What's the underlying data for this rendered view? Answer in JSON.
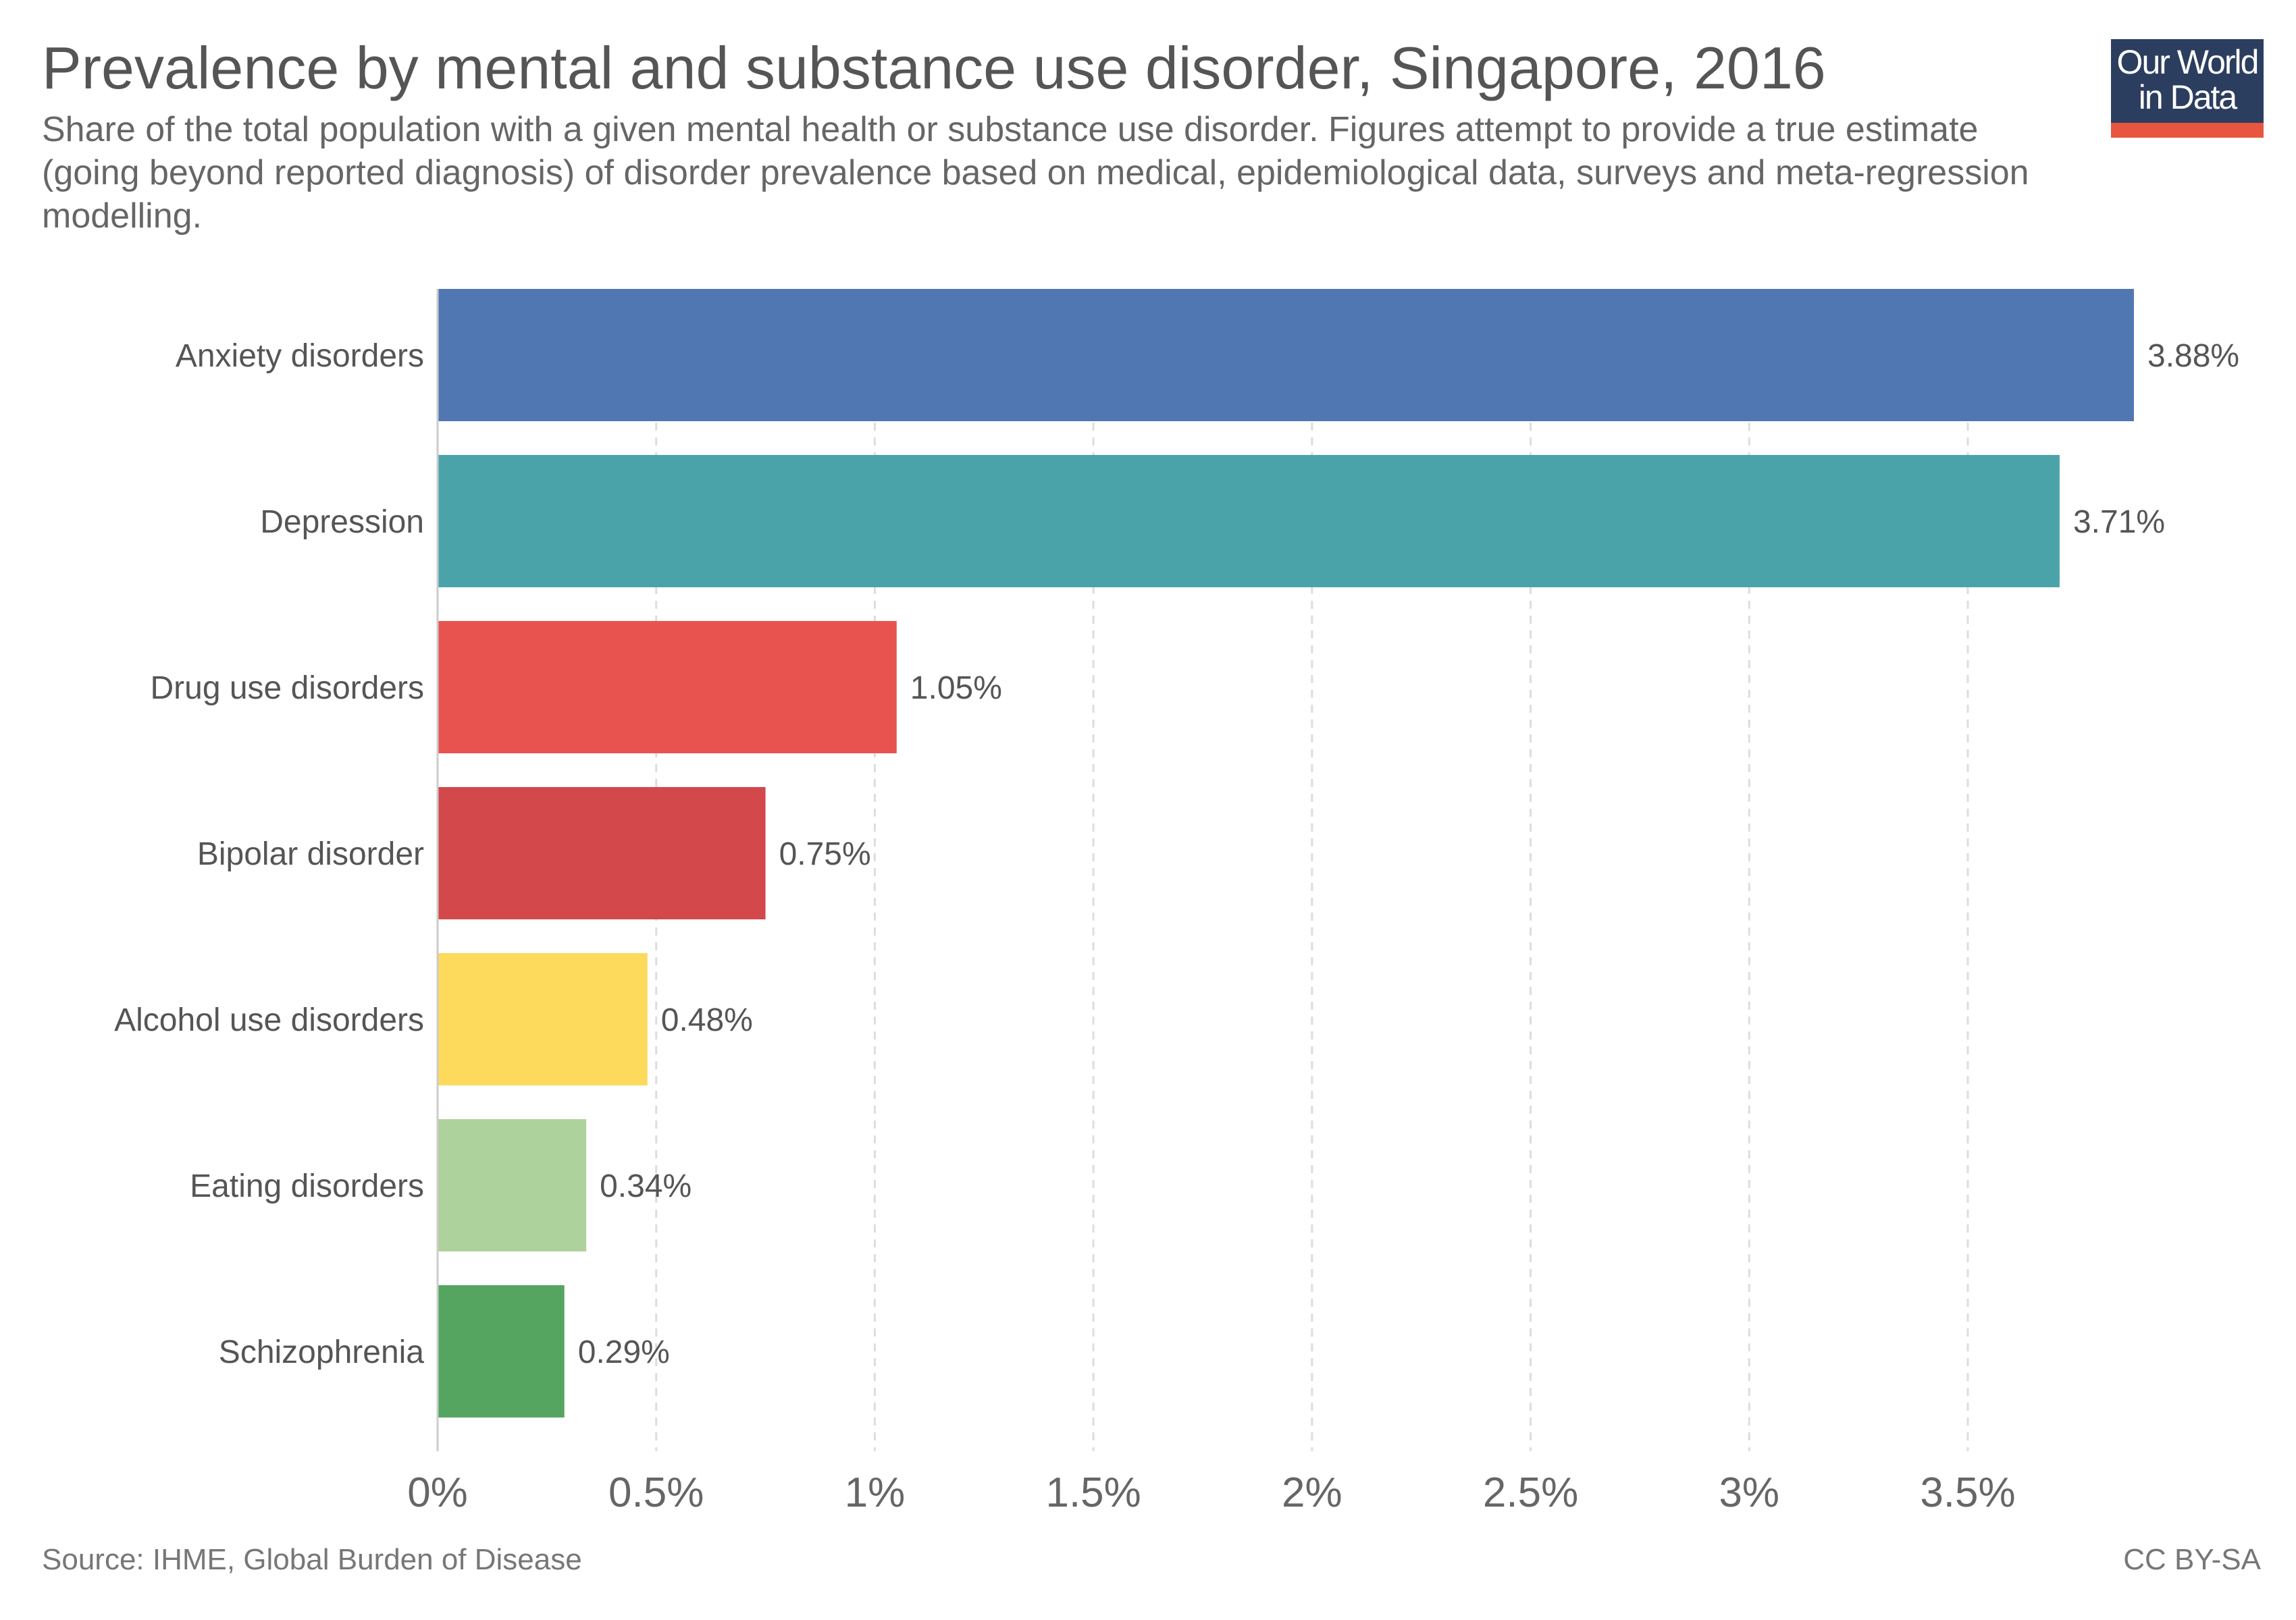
{
  "header": {
    "title": "Prevalence by mental and substance use disorder, Singapore, 2016",
    "subtitle": "Share of the total population with a given mental health or substance use disorder. Figures attempt to provide a true estimate (going beyond reported diagnosis) of disorder prevalence based on medical, epidemiological data, surveys and meta-regression modelling."
  },
  "logo": {
    "line1": "Our World",
    "line2": "in Data"
  },
  "footer": {
    "source": "Source: IHME, Global Burden of Disease",
    "license": "CC BY-SA"
  },
  "chart_data": {
    "type": "bar",
    "orientation": "horizontal",
    "title": "Prevalence by mental and substance use disorder, Singapore, 2016",
    "xlabel": "",
    "ylabel": "",
    "unit": "%",
    "xlim": [
      0,
      3.88
    ],
    "grid": true,
    "categories": [
      "Anxiety disorders",
      "Depression",
      "Drug use disorders",
      "Bipolar disorder",
      "Alcohol use disorders",
      "Eating disorders",
      "Schizophrenia"
    ],
    "values": [
      3.88,
      3.71,
      1.05,
      0.75,
      0.48,
      0.34,
      0.29
    ],
    "value_labels": [
      "3.88%",
      "3.71%",
      "1.05%",
      "0.75%",
      "0.48%",
      "0.34%",
      "0.29%"
    ],
    "colors": [
      "#5177b3",
      "#4aa3a9",
      "#e9534f",
      "#d2484b",
      "#fdd95c",
      "#aed29b",
      "#55a560"
    ],
    "ticks": [
      0,
      0.5,
      1,
      1.5,
      2,
      2.5,
      3,
      3.5
    ],
    "tick_labels": [
      "0%",
      "0.5%",
      "1%",
      "1.5%",
      "2%",
      "2.5%",
      "3%",
      "3.5%"
    ]
  }
}
